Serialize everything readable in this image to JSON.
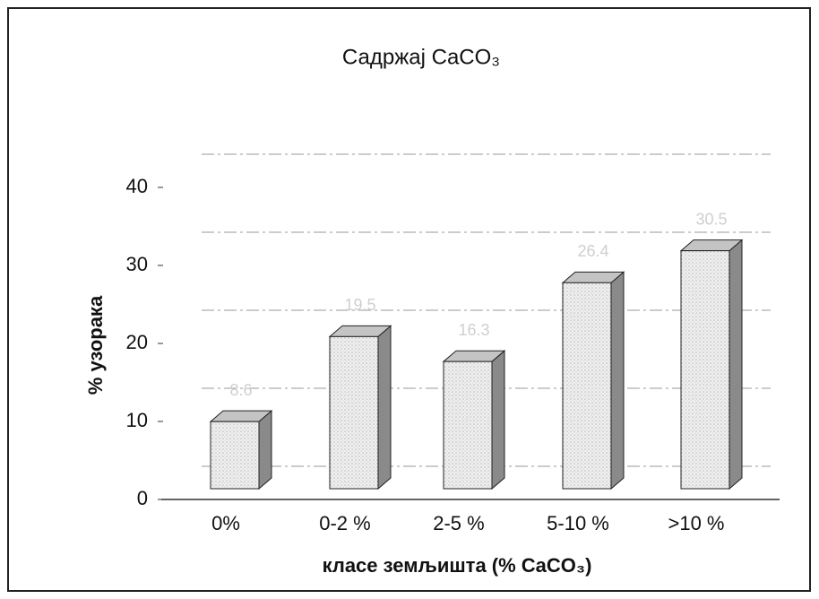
{
  "chart_data": {
    "type": "bar3d",
    "title": "Садржај CaCO₃",
    "x_label": "класе земљишта (% CaCO₃)",
    "y_label": "% узорака",
    "categories": [
      "0%",
      "0-2 %",
      "2-5 %",
      "5-10 %",
      ">10 %"
    ],
    "values": [
      8.6,
      19.5,
      16.3,
      26.4,
      30.5
    ],
    "ylim": [
      0,
      40
    ],
    "yticks": [
      0,
      10,
      20,
      30,
      40
    ],
    "color": "#e6e6e6",
    "grid": true
  }
}
